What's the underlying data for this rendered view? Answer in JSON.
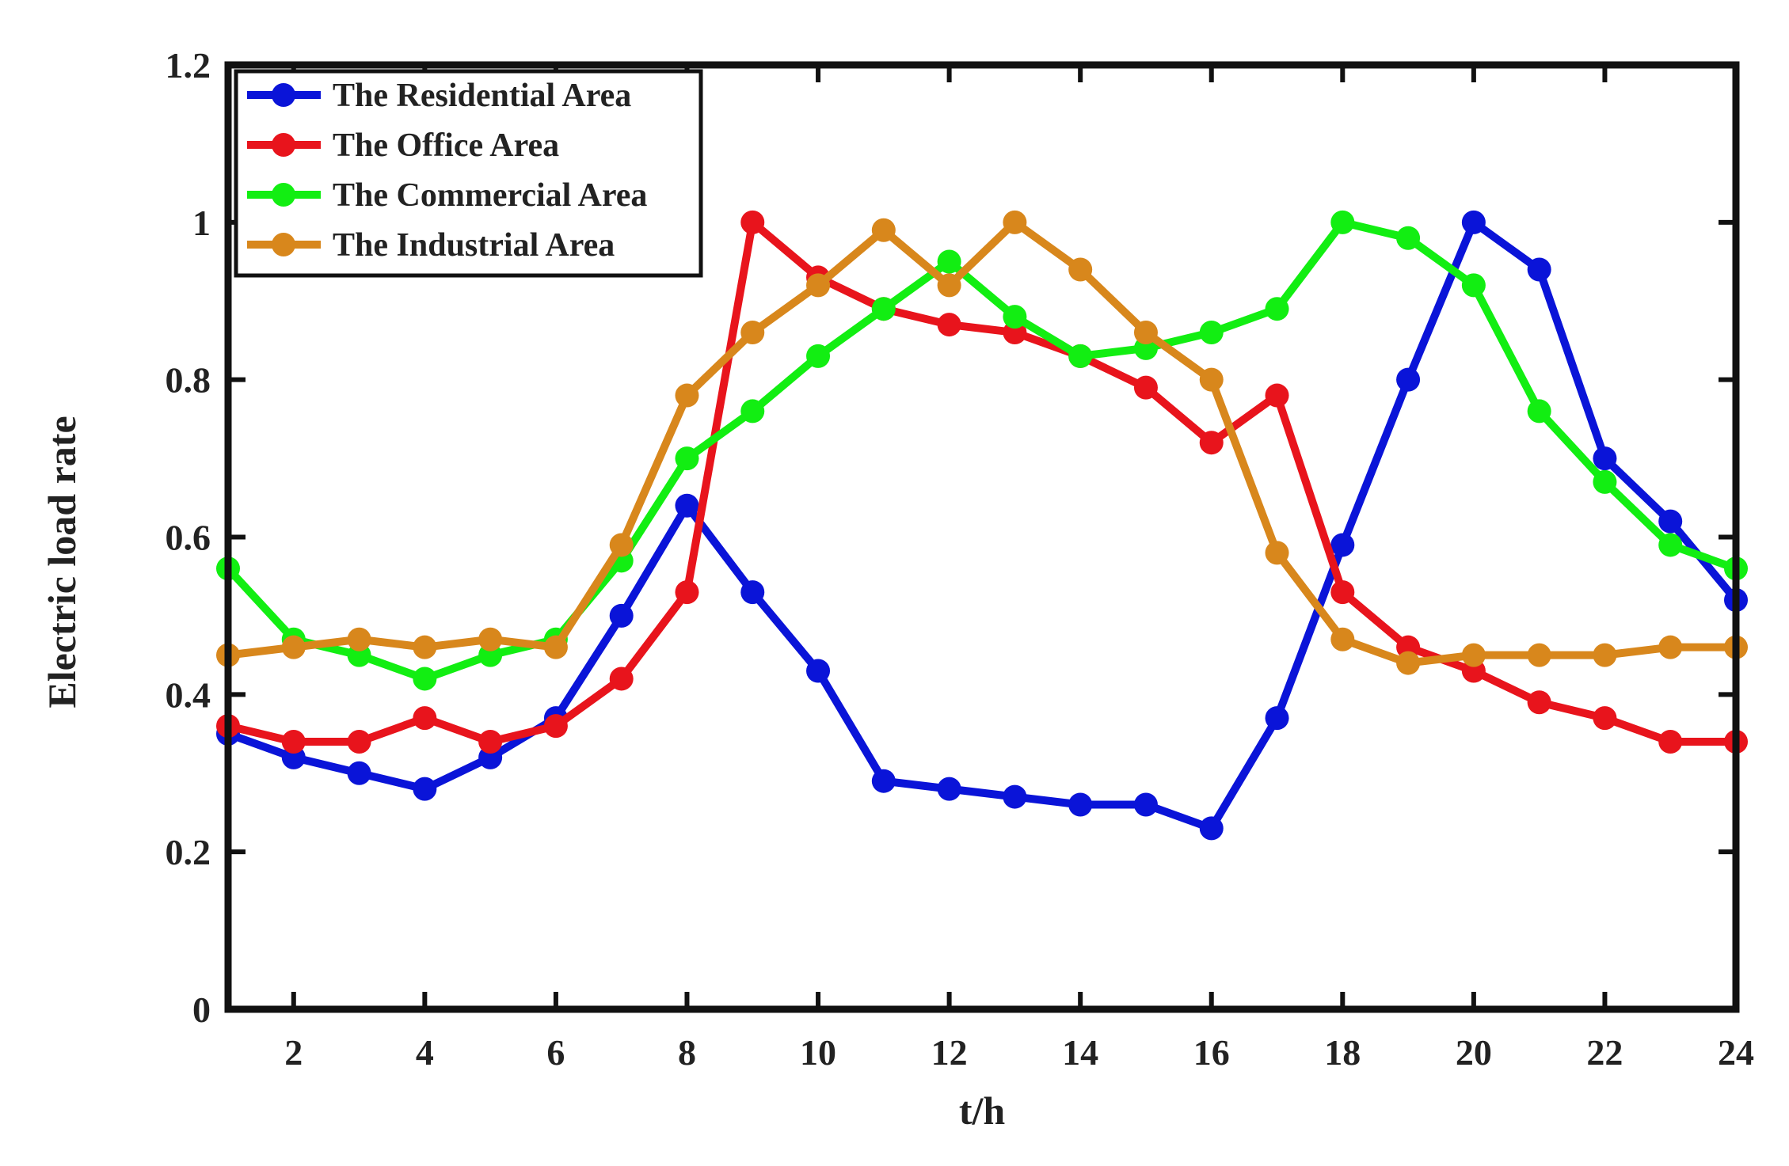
{
  "chart_data": {
    "type": "line",
    "title": "",
    "xlabel": "t/h",
    "ylabel": "Electric load rate",
    "xlim": [
      1,
      24
    ],
    "ylim": [
      0,
      1.2
    ],
    "x_ticks": [
      2,
      4,
      6,
      8,
      10,
      12,
      14,
      16,
      18,
      20,
      22,
      24
    ],
    "y_ticks": [
      0,
      0.2,
      0.4,
      0.6,
      0.8,
      1,
      1.2
    ],
    "y_tick_labels": [
      "0",
      "0.2",
      "0.4",
      "0.6",
      "0.8",
      "1",
      "1.2"
    ],
    "grid": false,
    "legend_position": "top-left",
    "x": [
      1,
      2,
      3,
      4,
      5,
      6,
      7,
      8,
      9,
      10,
      11,
      12,
      13,
      14,
      15,
      16,
      17,
      18,
      19,
      20,
      21,
      22,
      23,
      24
    ],
    "series": [
      {
        "name": "The Residential Area",
        "color": "#0a14d8",
        "values": [
          0.35,
          0.32,
          0.3,
          0.28,
          0.32,
          0.37,
          0.5,
          0.64,
          0.53,
          0.43,
          0.29,
          0.28,
          0.27,
          0.26,
          0.26,
          0.23,
          0.37,
          0.59,
          0.8,
          1.0,
          0.94,
          0.7,
          0.62,
          0.52
        ]
      },
      {
        "name": "The Office Area",
        "color": "#e8141c",
        "values": [
          0.36,
          0.34,
          0.34,
          0.37,
          0.34,
          0.36,
          0.42,
          0.53,
          1.0,
          0.93,
          0.89,
          0.87,
          0.86,
          0.83,
          0.79,
          0.72,
          0.78,
          0.53,
          0.46,
          0.43,
          0.39,
          0.37,
          0.34,
          0.34
        ]
      },
      {
        "name": "The Commercial Area",
        "color": "#12ee12",
        "values": [
          0.56,
          0.47,
          0.45,
          0.42,
          0.45,
          0.47,
          0.57,
          0.7,
          0.76,
          0.83,
          0.89,
          0.95,
          0.88,
          0.83,
          0.84,
          0.86,
          0.89,
          1.0,
          0.98,
          0.92,
          0.76,
          0.67,
          0.59,
          0.56
        ]
      },
      {
        "name": "The Industrial Area",
        "color": "#d8871c",
        "values": [
          0.45,
          0.46,
          0.47,
          0.46,
          0.47,
          0.46,
          0.59,
          0.78,
          0.86,
          0.92,
          0.99,
          0.92,
          1.0,
          0.94,
          0.86,
          0.8,
          0.58,
          0.47,
          0.44,
          0.45,
          0.45,
          0.45,
          0.46,
          0.46
        ]
      }
    ]
  }
}
